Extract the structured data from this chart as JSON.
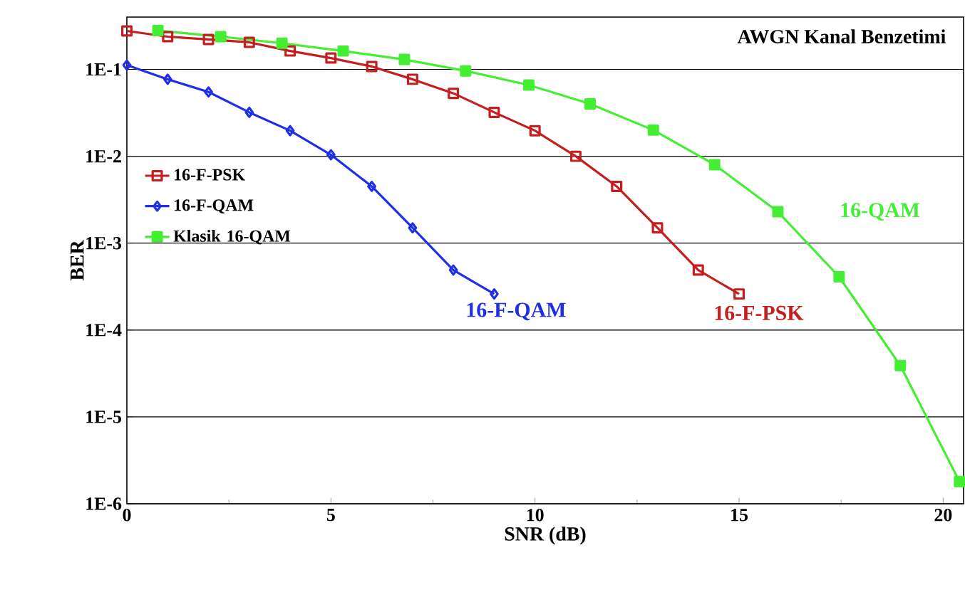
{
  "chart_data": {
    "type": "line",
    "title": "AWGN Kanal Benzetimi",
    "xlabel": "SNR (dB)",
    "ylabel": "BER",
    "log": "y",
    "grid": "y",
    "legend": "left",
    "xlim": [
      0,
      20.5
    ],
    "xticks": [
      0,
      5,
      10,
      15,
      20
    ],
    "ylim": [
      1e-06,
      0.4
    ],
    "yticks": [
      {
        "value": 0.1,
        "label": "1E-1"
      },
      {
        "value": 0.01,
        "label": "1E-2"
      },
      {
        "value": 0.001,
        "label": "1E-3"
      },
      {
        "value": 0.0001,
        "label": "1E-4"
      },
      {
        "value": 1e-05,
        "label": "1E-5"
      },
      {
        "value": 1e-06,
        "label": "1E-6"
      }
    ],
    "series": [
      {
        "name": "16-F-PSK",
        "color": "#c41e1e",
        "marker": "square",
        "x": [
          0,
          1,
          2,
          3,
          4,
          5,
          6,
          7,
          8,
          9,
          10,
          11,
          12,
          13,
          14,
          15
        ],
        "values": [
          0.277,
          0.238,
          0.221,
          0.205,
          0.163,
          0.135,
          0.108,
          0.077,
          0.053,
          0.032,
          0.0197,
          0.01,
          0.0045,
          0.0015,
          0.00049,
          0.00026
        ]
      },
      {
        "name": "16-F-QAM",
        "color": "#1f2fe6",
        "marker": "diamond",
        "x": [
          0,
          1,
          2,
          3,
          4,
          5,
          6,
          7,
          8,
          9
        ],
        "values": [
          0.112,
          0.077,
          0.055,
          0.032,
          0.0197,
          0.0104,
          0.0045,
          0.0015,
          0.00049,
          0.00026
        ]
      },
      {
        "name": "Klasik 16-QAM",
        "color": "#44ee33",
        "marker": "square",
        "x": [
          0.76,
          2.3,
          3.8,
          5.3,
          6.8,
          8.3,
          9.85,
          11.35,
          12.9,
          14.4,
          15.95,
          17.45,
          18.95,
          20.4
        ],
        "values": [
          0.28,
          0.238,
          0.2,
          0.163,
          0.13,
          0.096,
          0.066,
          0.04,
          0.02,
          0.008,
          0.0023,
          0.00041,
          3.9e-05,
          1.8e-06
        ]
      }
    ],
    "annotations": [
      "16-F-PSK",
      "16-F-QAM",
      "16-QAM"
    ]
  }
}
